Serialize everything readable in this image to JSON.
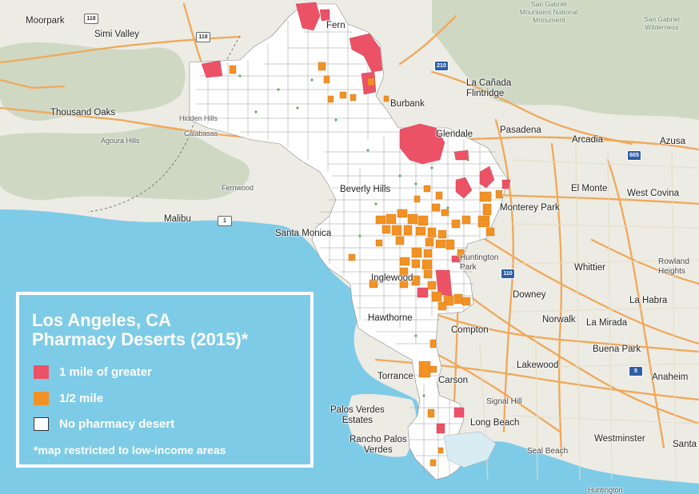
{
  "legend": {
    "title_line1": "Los Angeles, CA",
    "title_line2": "Pharmacy Deserts (2015)*",
    "items": [
      {
        "label": "1 mile of greater",
        "color": "#ec5266"
      },
      {
        "label": "1/2 mile",
        "color": "#f29224"
      },
      {
        "label": "No pharmacy desert",
        "color": "#ffffff"
      }
    ],
    "note": "*map restricted to low-income areas"
  },
  "colors": {
    "ocean": "#7ecbe7",
    "land": "#ecebe4",
    "hills": "#c9d5bd",
    "desert_1mile": "#ec5266",
    "desert_half": "#f29224",
    "no_desert": "#ffffff",
    "freeway": "#f0a858",
    "tract_border": "#9a9a9a"
  },
  "places": [
    {
      "name": "Moorpark"
    },
    {
      "name": "Simi Valley"
    },
    {
      "name": "Thousand Oaks"
    },
    {
      "name": "Agoura Hills"
    },
    {
      "name": "Hidden Hills"
    },
    {
      "name": "Calabasas"
    },
    {
      "name": "Fernwood"
    },
    {
      "name": "Malibu"
    },
    {
      "name": "Santa Monica"
    },
    {
      "name": "Beverly Hills"
    },
    {
      "name": "Fern"
    },
    {
      "name": "Burbank"
    },
    {
      "name": "Glendale"
    },
    {
      "name": "La Cañada\nFlintridge"
    },
    {
      "name": "Pasadena"
    },
    {
      "name": "Arcadia"
    },
    {
      "name": "Azusa"
    },
    {
      "name": "El Monte"
    },
    {
      "name": "West Covina"
    },
    {
      "name": "Monterey Park"
    },
    {
      "name": "Huntington\nPark"
    },
    {
      "name": "Inglewood"
    },
    {
      "name": "Hawthorne"
    },
    {
      "name": "Compton"
    },
    {
      "name": "Whittier"
    },
    {
      "name": "Rowland\nHeights"
    },
    {
      "name": "Downey"
    },
    {
      "name": "La Habra"
    },
    {
      "name": "Norwalk"
    },
    {
      "name": "La Mirada"
    },
    {
      "name": "Buena Park"
    },
    {
      "name": "Anaheim"
    },
    {
      "name": "Lakewood"
    },
    {
      "name": "Torrance"
    },
    {
      "name": "Carson"
    },
    {
      "name": "Signal Hill"
    },
    {
      "name": "Palos Verdes\nEstates"
    },
    {
      "name": "Long Beach"
    },
    {
      "name": "Rancho Palos\nVerdes"
    },
    {
      "name": "Westminster"
    },
    {
      "name": "Seal Beach"
    },
    {
      "name": "Santa"
    },
    {
      "name": "San Gabriel\nMountains National\nMonument"
    },
    {
      "name": "San Gabriel\nWilderness"
    },
    {
      "name": "Huntington"
    }
  ],
  "shields": [
    {
      "label": "118",
      "kind": "us"
    },
    {
      "label": "118",
      "kind": "us"
    },
    {
      "label": "1",
      "kind": "us"
    },
    {
      "label": "110",
      "kind": "i"
    },
    {
      "label": "605",
      "kind": "i"
    },
    {
      "label": "5",
      "kind": "i"
    },
    {
      "label": "210",
      "kind": "i"
    }
  ]
}
